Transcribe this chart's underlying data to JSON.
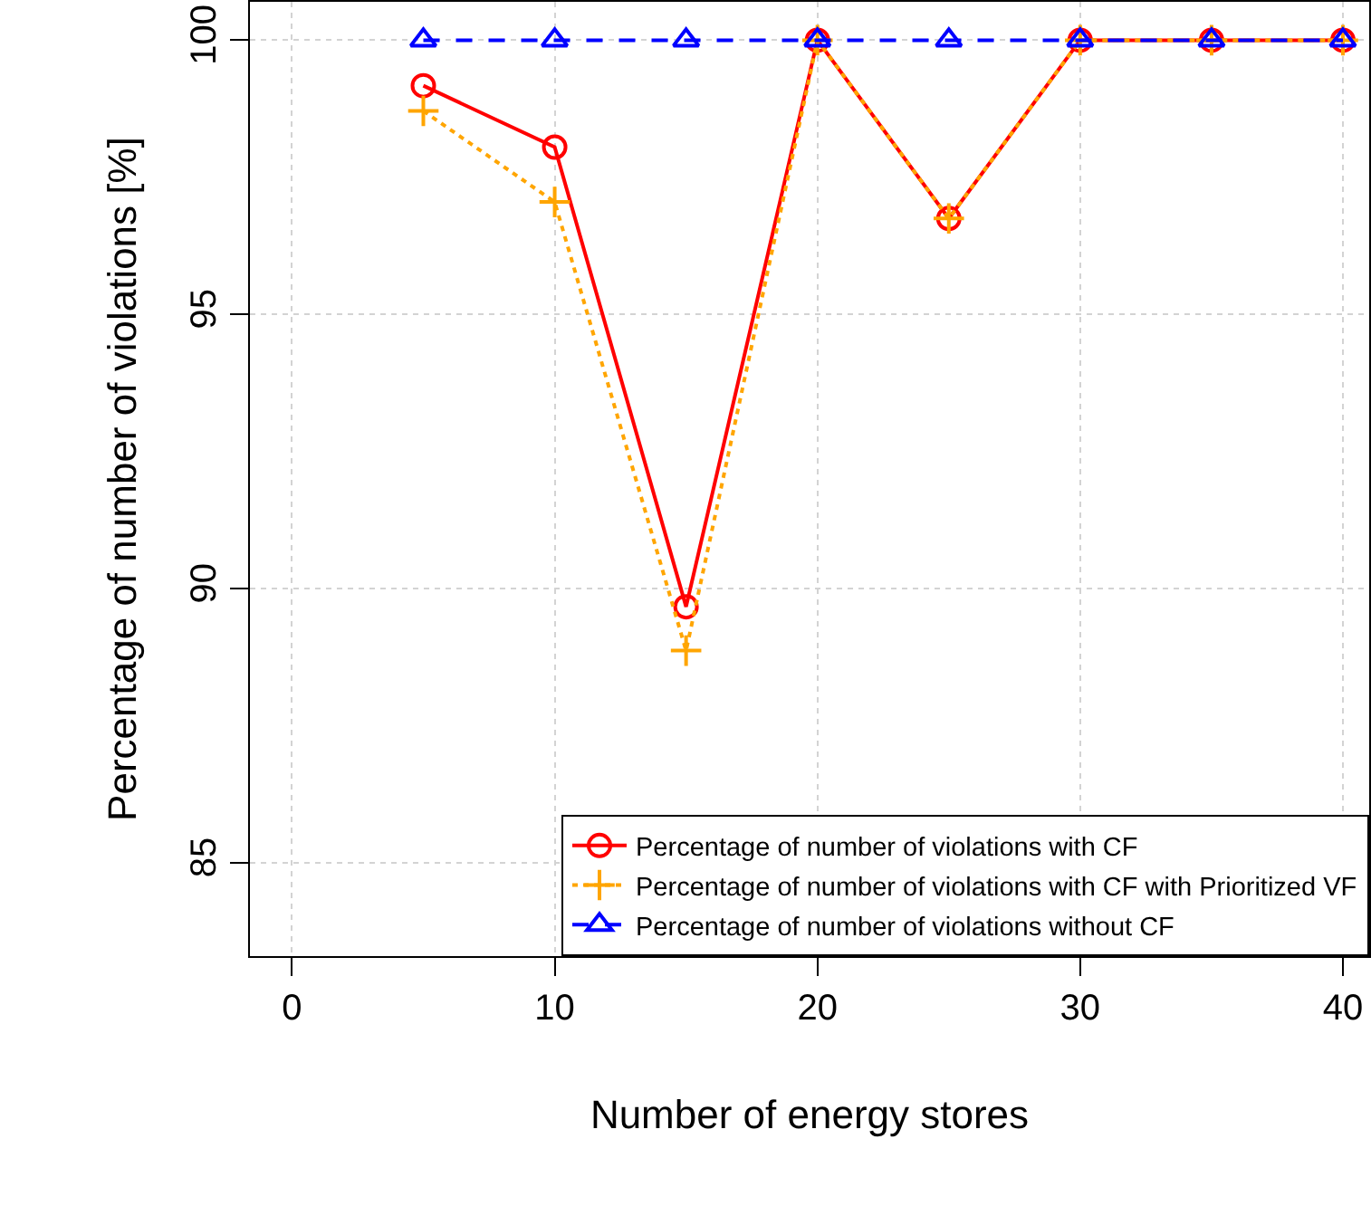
{
  "chart_data": {
    "type": "line",
    "xlabel": "Number of energy stores",
    "ylabel": "Percentage of number of violations [%]",
    "x": [
      5,
      10,
      15,
      20,
      25,
      30,
      35,
      40
    ],
    "xlim": [
      -1.6,
      41
    ],
    "xticks": [
      0,
      10,
      20,
      30,
      40
    ],
    "ylim": [
      83.3,
      100.7
    ],
    "yticks": [
      85,
      90,
      95,
      100
    ],
    "grid": true,
    "legend": "bottom right",
    "series": [
      {
        "name": "Percentage of number of violations with CF",
        "color": "#ff0000",
        "marker": "circle",
        "line_style": "solid",
        "values": [
          99.17,
          98.05,
          89.67,
          100,
          96.75,
          100,
          100,
          100
        ]
      },
      {
        "name": "Percentage of number of violations with CF with Prioritized VF",
        "color": "#ffa500",
        "marker": "cross",
        "line_style": "dotted",
        "values": [
          98.71,
          97.05,
          88.87,
          100,
          96.75,
          100,
          100,
          100
        ]
      },
      {
        "name": "Percentage of number of violations without CF",
        "color": "#0000ff",
        "marker": "triangle",
        "line_style": "dashed",
        "values": [
          100,
          100,
          100,
          100,
          100,
          100,
          100,
          100
        ]
      }
    ]
  }
}
